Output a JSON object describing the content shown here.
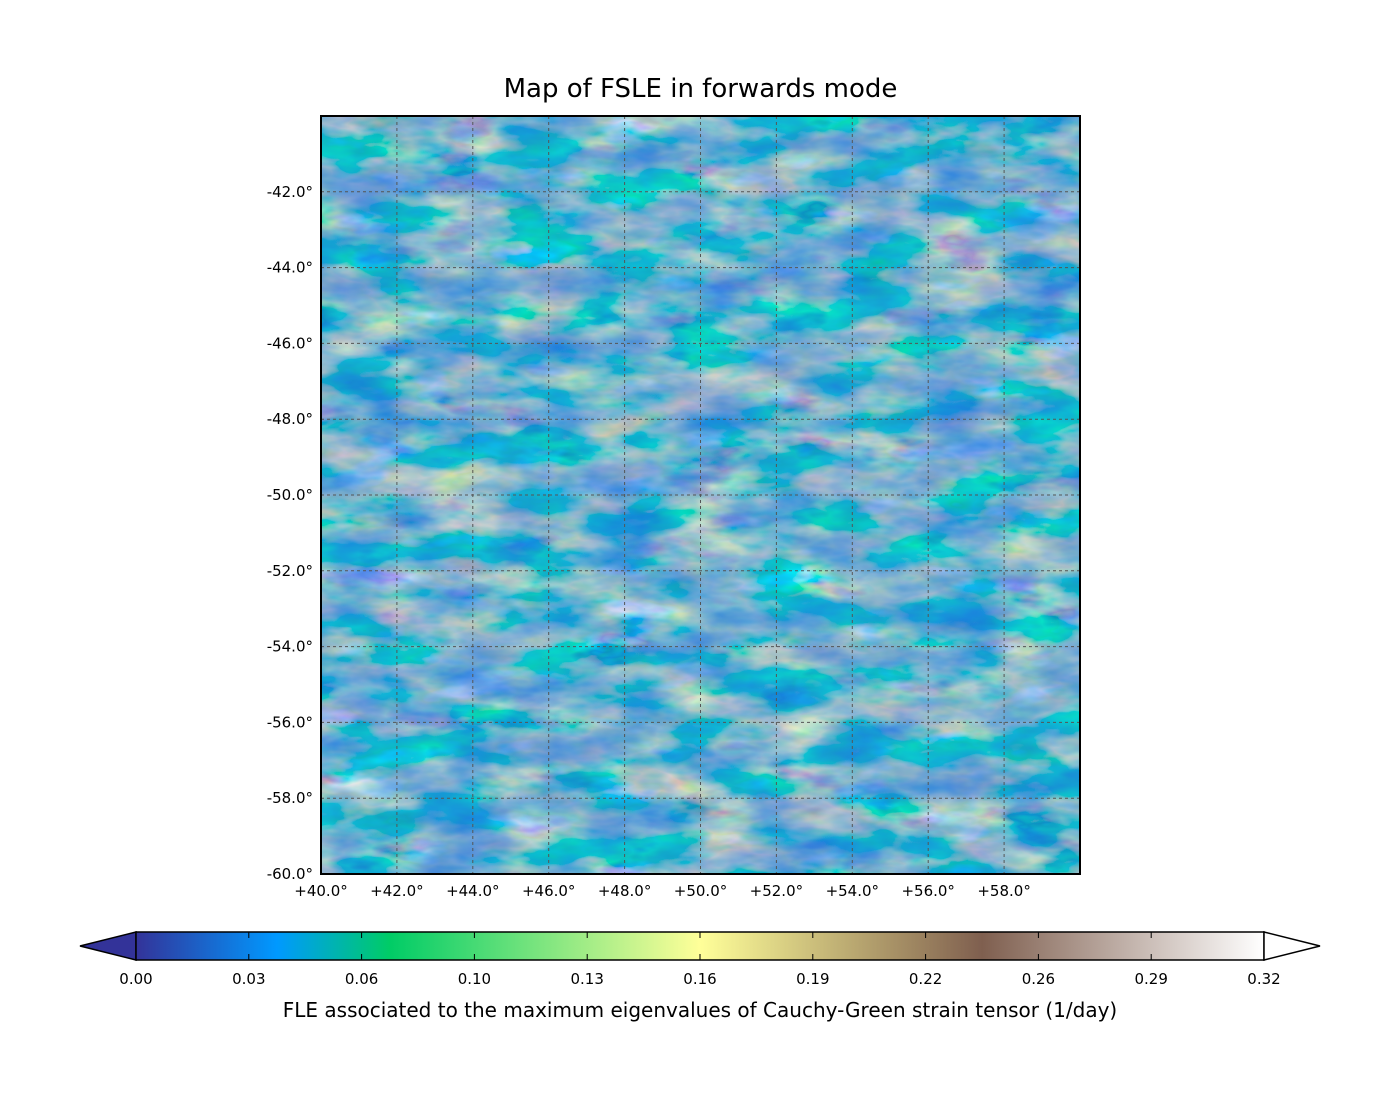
{
  "chart_data": {
    "type": "heatmap",
    "title": "Map of FSLE in forwards mode",
    "xlabel": "",
    "ylabel": "",
    "xlim": [
      40.0,
      60.0
    ],
    "ylim": [
      -60.0,
      -40.0
    ],
    "x_ticks": [
      40.0,
      42.0,
      44.0,
      46.0,
      48.0,
      50.0,
      52.0,
      54.0,
      56.0,
      58.0
    ],
    "x_tick_labels": [
      "+40.0°",
      "+42.0°",
      "+44.0°",
      "+46.0°",
      "+48.0°",
      "+50.0°",
      "+52.0°",
      "+54.0°",
      "+56.0°",
      "+58.0°"
    ],
    "y_ticks": [
      -42.0,
      -44.0,
      -46.0,
      -48.0,
      -50.0,
      -52.0,
      -54.0,
      -56.0,
      -58.0,
      -60.0
    ],
    "y_tick_labels": [
      "-42.0°",
      "-44.0°",
      "-46.0°",
      "-48.0°",
      "-50.0°",
      "-52.0°",
      "-54.0°",
      "-56.0°",
      "-58.0°",
      "-60.0°"
    ],
    "grid": true,
    "colorbar": {
      "label": "FLE associated to the maximum eigenvalues of Cauchy-Green strain tensor (1/day)",
      "range": [
        0.0,
        0.32
      ],
      "extend": "both",
      "tick_values": [
        0.0,
        0.032,
        0.064,
        0.096,
        0.128,
        0.16,
        0.192,
        0.224,
        0.256,
        0.288,
        0.32
      ],
      "tick_labels": [
        "0.00",
        "0.03",
        "0.06",
        "0.10",
        "0.13",
        "0.16",
        "0.19",
        "0.22",
        "0.26",
        "0.29",
        "0.32"
      ],
      "colormap_stops": [
        {
          "value": 0.0,
          "color": "#333399"
        },
        {
          "value": 0.04,
          "color": "#0099ff"
        },
        {
          "value": 0.072,
          "color": "#00cc66"
        },
        {
          "value": 0.16,
          "color": "#ffff99"
        },
        {
          "value": 0.24,
          "color": "#7f5f4f"
        },
        {
          "value": 0.32,
          "color": "#ffffff"
        }
      ]
    }
  }
}
